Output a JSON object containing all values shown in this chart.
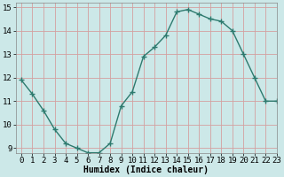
{
  "x": [
    0,
    1,
    2,
    3,
    4,
    5,
    6,
    7,
    8,
    9,
    10,
    11,
    12,
    13,
    14,
    15,
    16,
    17,
    18,
    19,
    20,
    21,
    22,
    23
  ],
  "y": [
    11.9,
    11.3,
    10.6,
    9.8,
    9.2,
    9.0,
    8.8,
    8.8,
    9.2,
    10.8,
    11.4,
    12.9,
    13.3,
    13.8,
    14.8,
    14.9,
    14.7,
    14.5,
    14.4,
    14.0,
    13.0,
    12.0,
    11.0,
    11.0
  ],
  "line_color": "#2d7a6e",
  "marker": "+",
  "bg_color": "#cce8e8",
  "grid_color": "#d4a0a0",
  "spine_color": "#888888",
  "xlabel": "Humidex (Indice chaleur)",
  "xlim": [
    -0.5,
    23
  ],
  "ylim": [
    8.8,
    15.2
  ],
  "xticks": [
    0,
    1,
    2,
    3,
    4,
    5,
    6,
    7,
    8,
    9,
    10,
    11,
    12,
    13,
    14,
    15,
    16,
    17,
    18,
    19,
    20,
    21,
    22,
    23
  ],
  "yticks": [
    9,
    10,
    11,
    12,
    13,
    14,
    15
  ],
  "xlabel_fontsize": 7,
  "tick_fontsize": 6.5
}
